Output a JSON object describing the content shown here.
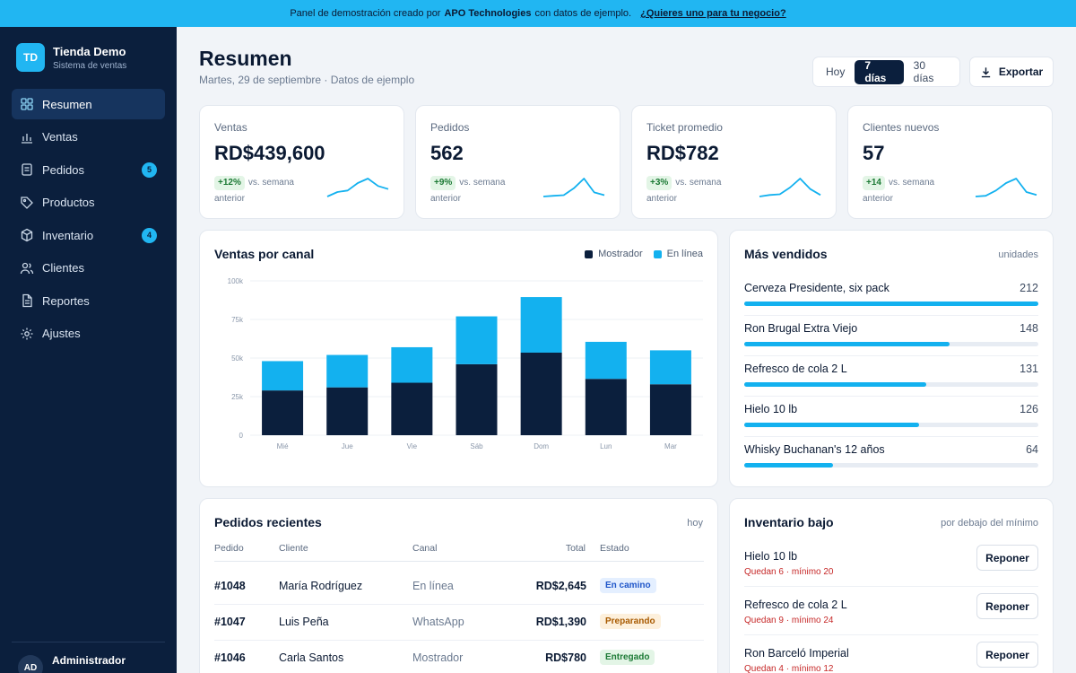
{
  "banner": {
    "text_prefix": "Panel de demostración creado por",
    "company": "APO Technologies",
    "text_suffix": "con datos de ejemplo.",
    "cta": "¿Quieres uno para tu negocio?"
  },
  "sidebar": {
    "logo_initials": "TD",
    "brand_name": "Tienda Demo",
    "brand_sub": "Sistema de ventas",
    "items": [
      {
        "label": "Resumen",
        "icon": "grid-icon",
        "active": true
      },
      {
        "label": "Ventas",
        "icon": "bar-chart-icon"
      },
      {
        "label": "Pedidos",
        "icon": "receipt-icon",
        "badge": "5"
      },
      {
        "label": "Productos",
        "icon": "tag-icon"
      },
      {
        "label": "Inventario",
        "icon": "box-icon",
        "badge": "4"
      },
      {
        "label": "Clientes",
        "icon": "users-icon"
      },
      {
        "label": "Reportes",
        "icon": "document-icon"
      },
      {
        "label": "Ajustes",
        "icon": "gear-icon"
      }
    ],
    "user_initials": "AD",
    "user_name": "Administrador"
  },
  "header": {
    "title": "Resumen",
    "subtitle": "Martes, 29 de septiembre · Datos de ejemplo",
    "ranges": [
      "Hoy",
      "7 días",
      "30 días"
    ],
    "active_range": "7 días",
    "export_label": "Exportar"
  },
  "kpis": [
    {
      "label": "Ventas",
      "value": "RD$439,600",
      "delta": "+12%",
      "delta_text": "vs. semana anterior",
      "trend": [
        2,
        5,
        6,
        11,
        14,
        9,
        7
      ]
    },
    {
      "label": "Pedidos",
      "value": "562",
      "delta": "+9%",
      "delta_text": "vs. semana anterior",
      "trend": [
        2,
        2.5,
        3,
        8,
        15,
        5,
        3
      ]
    },
    {
      "label": "Ticket promedio",
      "value": "RD$782",
      "delta": "+3%",
      "delta_text": "vs. semana anterior",
      "trend": [
        2,
        3,
        3.5,
        8,
        14,
        7,
        3
      ]
    },
    {
      "label": "Clientes nuevos",
      "value": "57",
      "delta": "+14",
      "delta_text": "vs. semana anterior",
      "trend": [
        2,
        2.5,
        6,
        11,
        14,
        5,
        3
      ]
    }
  ],
  "colors": {
    "accent": "#13b1ef",
    "navy": "#0b1f3d",
    "positive": "#1c7a35",
    "danger": "#c62828"
  },
  "sales_chart": {
    "title": "Ventas por canal",
    "legend": [
      "Mostrador",
      "En línea"
    ]
  },
  "chart_data": {
    "type": "bar",
    "stacked": true,
    "title": "Ventas por canal",
    "categories": [
      "Mié",
      "Jue",
      "Vie",
      "Sáb",
      "Dom",
      "Lun",
      "Mar"
    ],
    "series": [
      {
        "name": "Mostrador",
        "values": [
          29000,
          31000,
          34000,
          46000,
          53500,
          36500,
          33000
        ],
        "color": "#0b1f3d"
      },
      {
        "name": "En línea",
        "values": [
          19000,
          21000,
          23000,
          31000,
          36000,
          24000,
          22000
        ],
        "color": "#13b1ef"
      }
    ],
    "y_ticks": [
      "0",
      "25k",
      "50k",
      "75k",
      "100k"
    ],
    "ylim": [
      0,
      100000
    ],
    "grid": true,
    "legend_position": "top-right"
  },
  "top_sellers": {
    "title": "Más vendidos",
    "meta": "unidades",
    "max": 212,
    "items": [
      {
        "name": "Cerveza Presidente, six pack",
        "units": 212
      },
      {
        "name": "Ron Brugal Extra Viejo",
        "units": 148
      },
      {
        "name": "Refresco de cola 2 L",
        "units": 131
      },
      {
        "name": "Hielo 10 lb",
        "units": 126
      },
      {
        "name": "Whisky Buchanan's 12 años",
        "units": 64
      }
    ]
  },
  "orders": {
    "title": "Pedidos recientes",
    "meta": "hoy",
    "columns": [
      "Pedido",
      "Cliente",
      "Canal",
      "Total",
      "Estado"
    ],
    "rows": [
      {
        "id": "#1048",
        "client": "María Rodríguez",
        "channel": "En línea",
        "total": "RD$2,645",
        "status": "En camino"
      },
      {
        "id": "#1047",
        "client": "Luis Peña",
        "channel": "WhatsApp",
        "total": "RD$1,390",
        "status": "Preparando"
      },
      {
        "id": "#1046",
        "client": "Carla Santos",
        "channel": "Mostrador",
        "total": "RD$780",
        "status": "Entregado"
      }
    ]
  },
  "low_inventory": {
    "title": "Inventario bajo",
    "meta": "por debajo del mínimo",
    "button_label": "Reponer",
    "items": [
      {
        "name": "Hielo 10 lb",
        "note": "Quedan 6 · mínimo 20"
      },
      {
        "name": "Refresco de cola 2 L",
        "note": "Quedan 9 · mínimo 24"
      },
      {
        "name": "Ron Barceló Imperial",
        "note": "Quedan 4 · mínimo 12"
      }
    ]
  }
}
